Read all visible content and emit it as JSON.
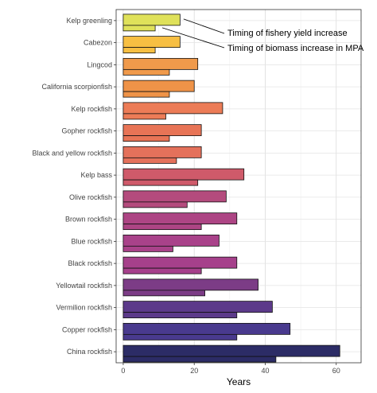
{
  "chart_data": {
    "type": "bar",
    "orientation": "horizontal",
    "xlabel": "Years",
    "xlim": [
      -2,
      67
    ],
    "xticks": [
      0,
      20,
      40,
      60
    ],
    "grid": true,
    "categories": [
      "Kelp greenling",
      "Cabezon",
      "Lingcod",
      "California scorpionfish",
      "Kelp rockfish",
      "Gopher rockfish",
      "Black and yellow rockfish",
      "Kelp bass",
      "Olive rockfish",
      "Brown rockfish",
      "Blue rockfish",
      "Black rockfish",
      "Yellowtail rockfish",
      "Vermilion rockfish",
      "Copper rockfish",
      "China rockfish"
    ],
    "series": [
      {
        "name": "Timing of fishery yield increase",
        "values": [
          16,
          16,
          21,
          20,
          28,
          22,
          22,
          34,
          29,
          32,
          27,
          32,
          38,
          42,
          47,
          61
        ]
      },
      {
        "name": "Timing of biomass increase in MPA",
        "values": [
          9,
          9,
          13,
          13,
          12,
          13,
          15,
          21,
          18,
          22,
          14,
          22,
          23,
          32,
          32,
          43
        ]
      }
    ],
    "colors": [
      "#dfe15a",
      "#f7bf42",
      "#f09a4b",
      "#ef9348",
      "#ec7c57",
      "#e87456",
      "#e4715b",
      "#cf5a6a",
      "#b44b7d",
      "#ad4584",
      "#a9428a",
      "#a6408b",
      "#7c3c86",
      "#5c3a8a",
      "#493a8e",
      "#2c2c66"
    ],
    "annotations": [
      {
        "text": "Timing of fishery yield increase",
        "series": 0,
        "category": 0
      },
      {
        "text": "Timing of biomass increase in MPA",
        "series": 1,
        "category": 0
      }
    ]
  }
}
